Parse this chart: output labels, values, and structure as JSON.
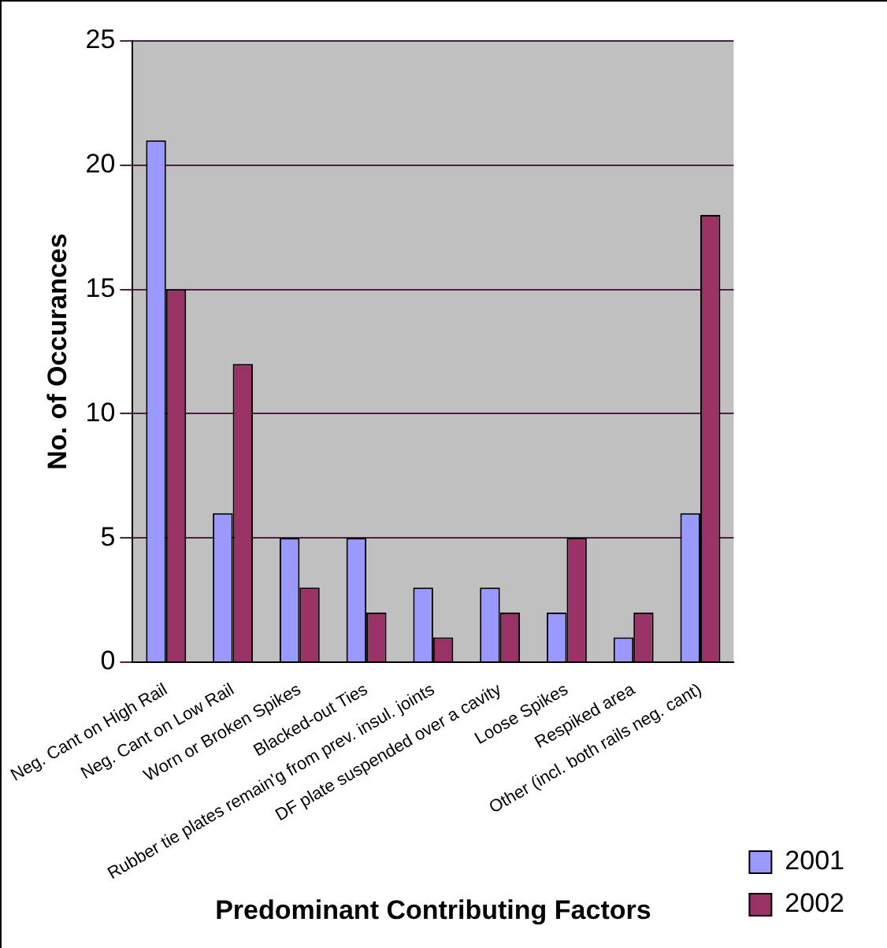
{
  "chart_data": {
    "type": "bar",
    "xlabel": "Predominant Contributing Factors",
    "ylabel": "No. of Occurances",
    "categories": [
      "Neg. Cant on High Rail",
      "Neg. Cant on Low Rail",
      "Worn or Broken Spikes",
      "Blacked-out Ties",
      "Rubber tie plates remain'g from prev. insul. joints",
      "DF plate suspended over a cavity",
      "Loose Spikes",
      "Respiked area",
      "Other (incl. both rails neg. cant)"
    ],
    "series": [
      {
        "name": "2001",
        "color": "#9999ff",
        "values": [
          21,
          6,
          5,
          5,
          3,
          3,
          2,
          1,
          6
        ]
      },
      {
        "name": "2002",
        "color": "#993366",
        "values": [
          15,
          12,
          3,
          2,
          1,
          2,
          5,
          2,
          18
        ]
      }
    ],
    "ylim": [
      0,
      25
    ],
    "yticks": [
      0,
      5,
      10,
      15,
      20,
      25
    ],
    "grid": "y",
    "legend": "bottom right"
  }
}
